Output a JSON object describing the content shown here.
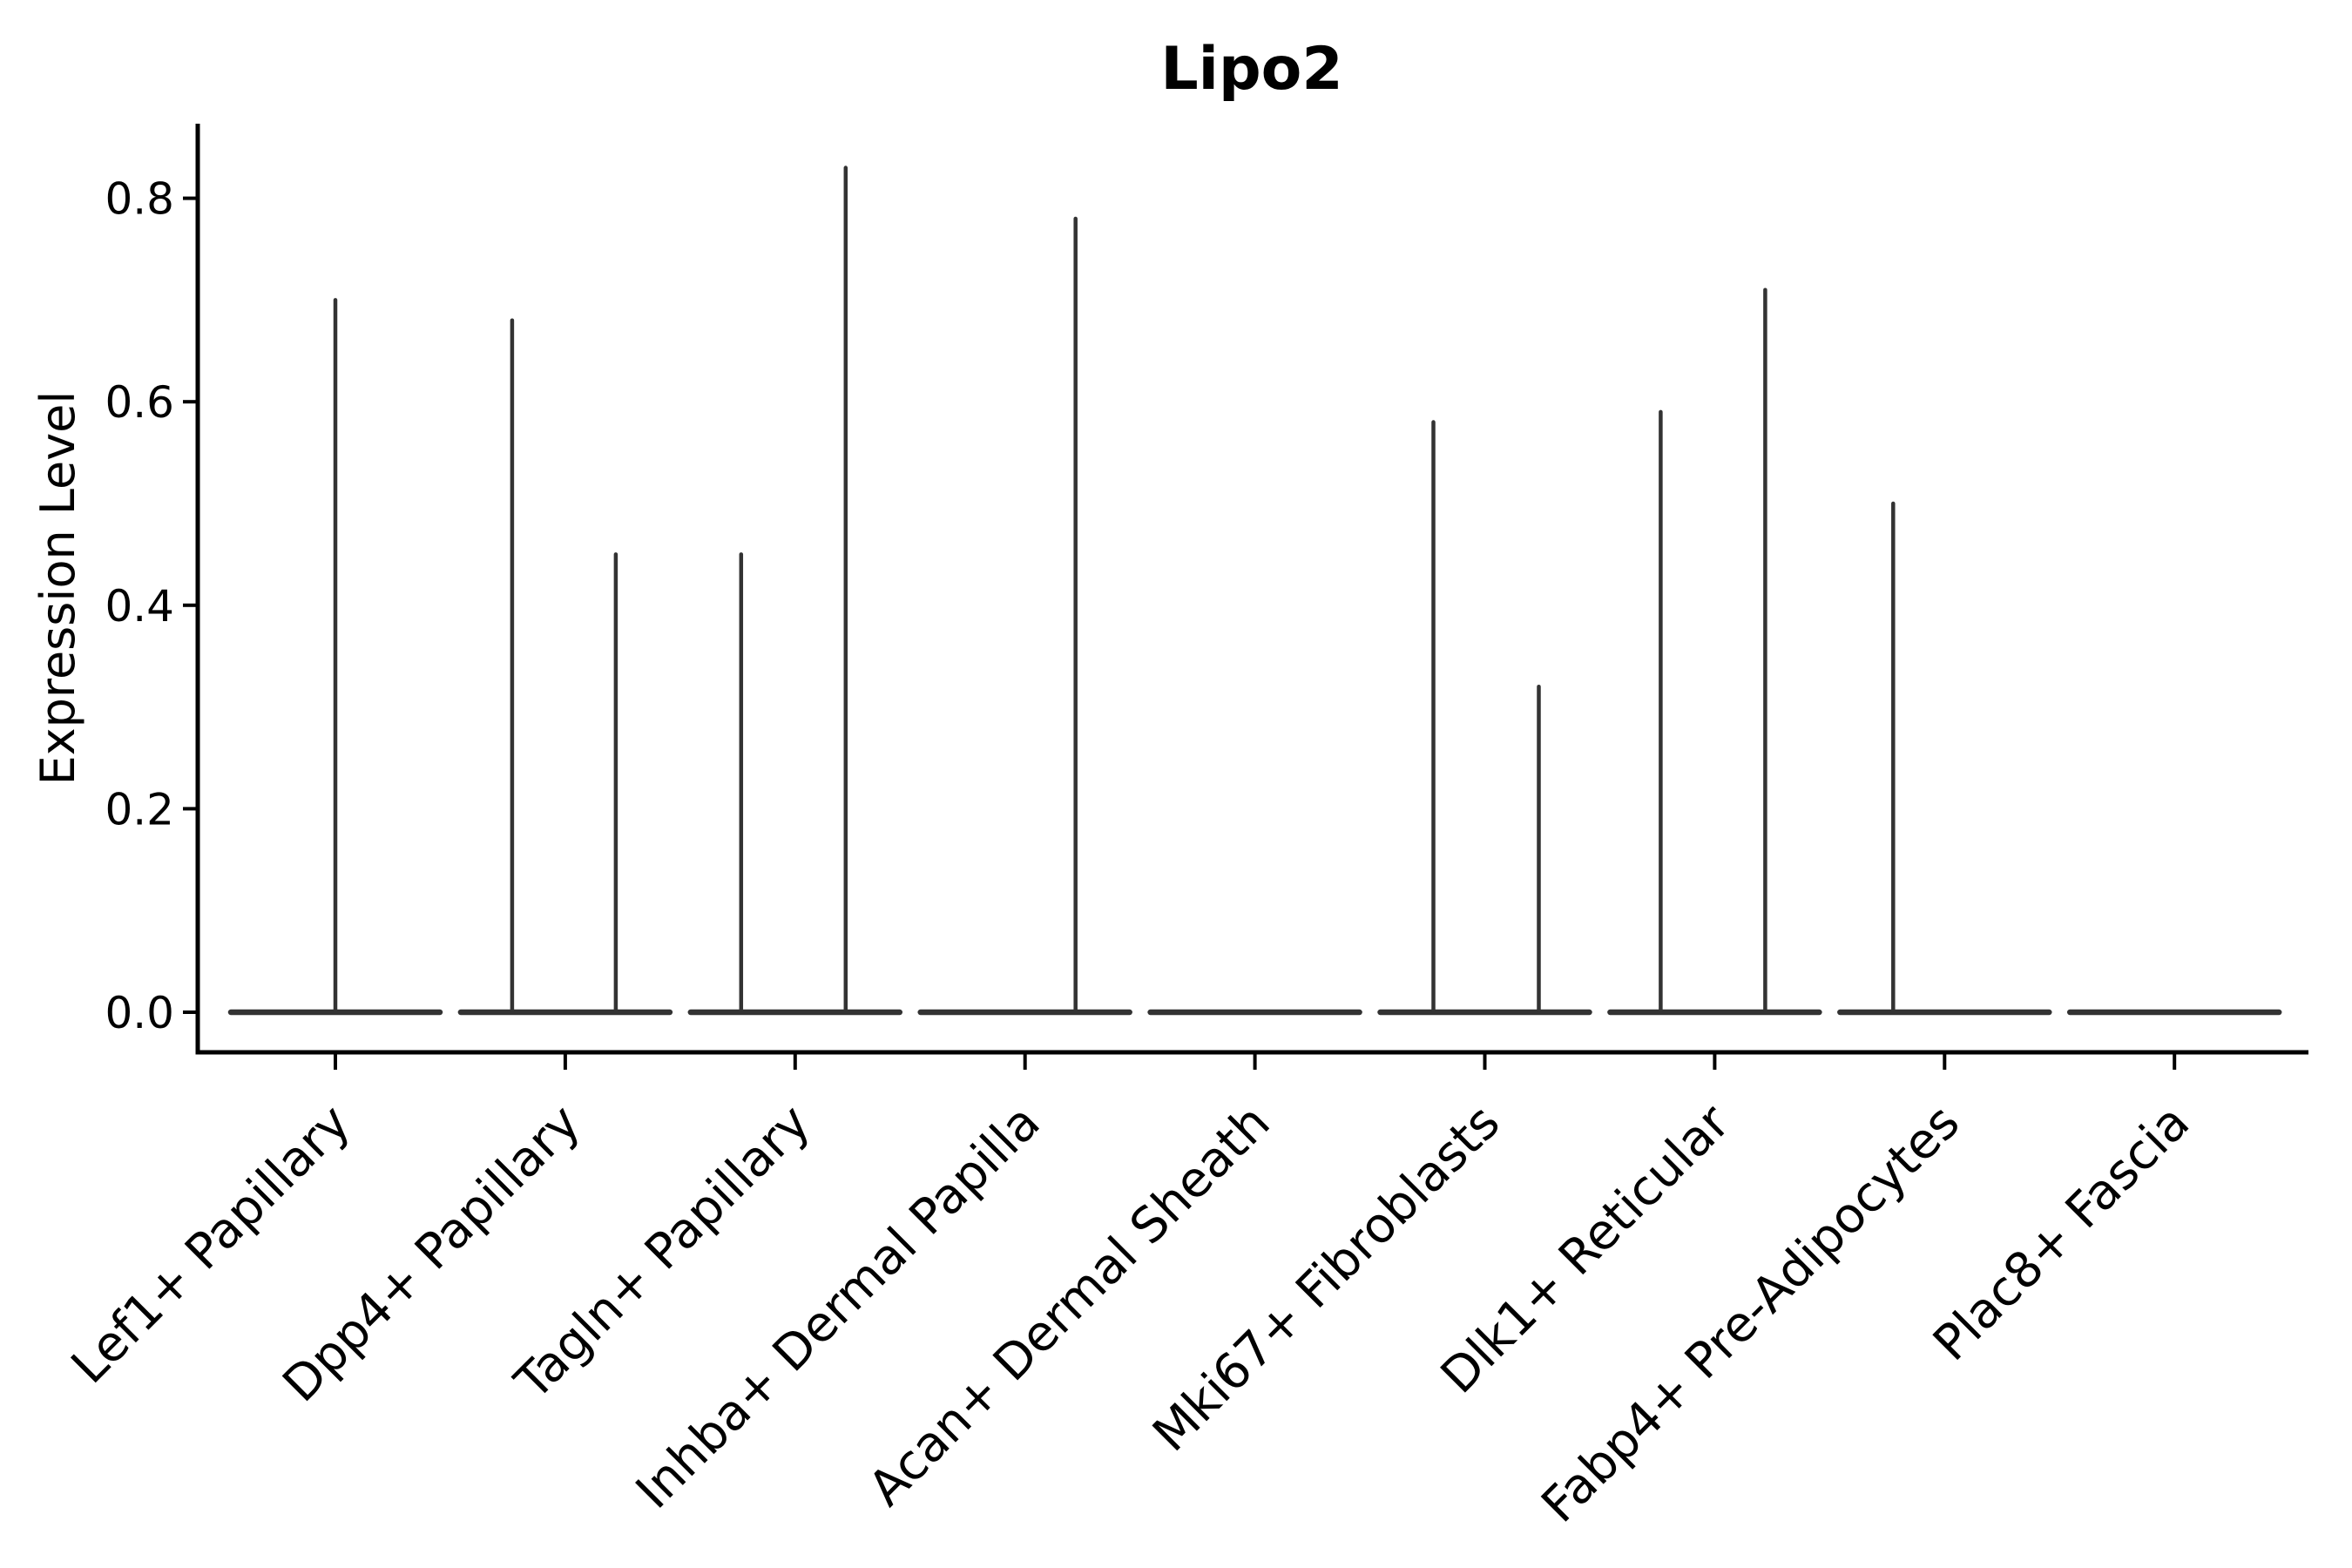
{
  "figure": {
    "background": "#ffffff"
  },
  "chart_data": {
    "type": "violin",
    "title": "Lipo2",
    "ylabel": "Expression Level",
    "xlabel": "",
    "grid": false,
    "legend": null,
    "y_ticks": [
      {
        "value": 0.0,
        "label": "0.0"
      },
      {
        "value": 0.2,
        "label": "0.2"
      },
      {
        "value": 0.4,
        "label": "0.4"
      },
      {
        "value": 0.6,
        "label": "0.6"
      },
      {
        "value": 0.8,
        "label": "0.8"
      }
    ],
    "ylim": [
      -0.04,
      0.87
    ],
    "categories": [
      "Lef1+ Papillary",
      "Dpp4+ Papillary",
      "Tagln+ Papillary",
      "Inhba+ Dermal Papilla",
      "Acan+ Dermal Sheath",
      "Mki67+ Fibroblasts",
      "Dlk1+ Reticular",
      "Fabp4+ Pre-Adipocytes",
      "Plac8+ Fascia"
    ],
    "violins": [
      {
        "category": "Lef1+ Papillary",
        "body": "flat-at-zero",
        "spikes": [
          {
            "dx": 0,
            "max": 0.7
          }
        ]
      },
      {
        "category": "Dpp4+ Papillary",
        "body": "flat-at-zero",
        "spikes": [
          {
            "dx": -61,
            "max": 0.68
          },
          {
            "dx": 58,
            "max": 0.45
          }
        ]
      },
      {
        "category": "Tagln+ Papillary",
        "body": "flat-at-zero",
        "spikes": [
          {
            "dx": -62,
            "max": 0.45
          },
          {
            "dx": 58,
            "max": 0.83
          }
        ]
      },
      {
        "category": "Inhba+ Dermal Papilla",
        "body": "flat-at-zero",
        "spikes": [
          {
            "dx": 58,
            "max": 0.78
          }
        ]
      },
      {
        "category": "Acan+ Dermal Sheath",
        "body": "flat-at-zero",
        "spikes": []
      },
      {
        "category": "Mki67+ Fibroblasts",
        "body": "flat-at-zero",
        "spikes": [
          {
            "dx": -59,
            "max": 0.58
          },
          {
            "dx": 62,
            "max": 0.32
          }
        ]
      },
      {
        "category": "Dlk1+ Reticular",
        "body": "flat-at-zero",
        "spikes": [
          {
            "dx": -62,
            "max": 0.59
          },
          {
            "dx": 58,
            "max": 0.71
          }
        ]
      },
      {
        "category": "Fabp4+ Pre-Adipocytes",
        "body": "flat-at-zero",
        "spikes": [
          {
            "dx": -59,
            "max": 0.5
          }
        ]
      },
      {
        "category": "Plac8+ Fascia",
        "body": "flat-at-zero",
        "spikes": []
      }
    ],
    "colors": {
      "violin": "#333333",
      "axis": "#000000",
      "text": "#000000",
      "background": "#ffffff"
    }
  }
}
